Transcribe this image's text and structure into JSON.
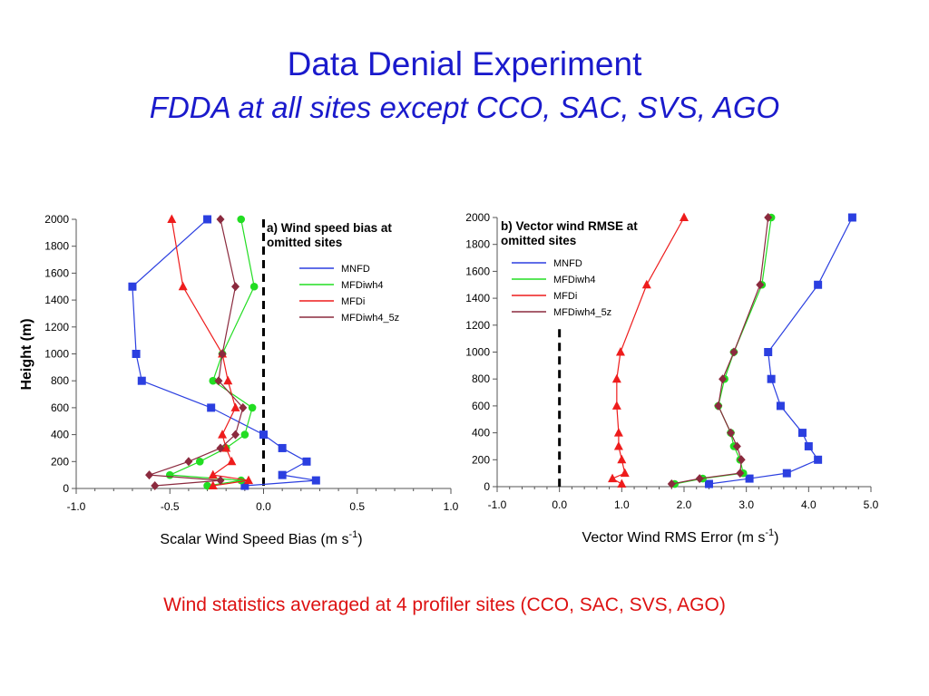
{
  "title": "Data Denial Experiment",
  "subtitle": "FDDA at all sites except CCO, SAC, SVS, AGO",
  "caption": "Wind statistics averaged at 4 profiler sites (CCO, SAC, SVS, AGO)",
  "colors": {
    "MNFD": "#2b3fe0",
    "MFDiwh4": "#22dd22",
    "MFDi": "#ee1c1c",
    "MFDiwh4_5z": "#8b2a3e"
  },
  "chart_data": [
    {
      "type": "line",
      "annotation": [
        "a) Wind speed bias at",
        "omitted sites"
      ],
      "xlabel": "Scalar Wind Speed Bias (m s",
      "xlabel_sup": "-1",
      "ylabel": "Height (m)",
      "xlim": [
        -1.0,
        1.0
      ],
      "ylim": [
        0,
        2000
      ],
      "xticks": [
        -1.0,
        -0.5,
        0.0,
        0.5,
        1.0
      ],
      "xtick_labels": [
        "-1.0",
        "-0.5",
        "0.0",
        "0.5",
        "1.0"
      ],
      "yticks": [
        0,
        200,
        400,
        600,
        800,
        1000,
        1200,
        1400,
        1600,
        1800,
        2000
      ],
      "ytick_labels": [
        "0",
        "200",
        "400",
        "600",
        "800",
        "1000",
        "1200",
        "1400",
        "1600",
        "1800",
        "2000"
      ],
      "reference_line": {
        "x": 0.0,
        "style": "dashed"
      },
      "legend_position": "top-right",
      "series": [
        {
          "name": "MNFD",
          "color": "#2b3fe0",
          "marker": "square",
          "x": [
            -0.1,
            0.28,
            0.1,
            0.23,
            0.1,
            0.0,
            -0.28,
            -0.65,
            -0.68,
            -0.7,
            -0.3
          ],
          "y": [
            20,
            60,
            100,
            200,
            300,
            400,
            600,
            800,
            1000,
            1500,
            2000
          ]
        },
        {
          "name": "MFDiwh4",
          "color": "#22dd22",
          "marker": "circle",
          "x": [
            -0.3,
            -0.12,
            -0.5,
            -0.34,
            -0.2,
            -0.1,
            -0.06,
            -0.27,
            -0.22,
            -0.05,
            -0.12
          ],
          "y": [
            20,
            60,
            100,
            200,
            300,
            400,
            600,
            800,
            1000,
            1500,
            2000
          ]
        },
        {
          "name": "MFDi",
          "color": "#ee1c1c",
          "marker": "triangle",
          "x": [
            -0.27,
            -0.08,
            -0.27,
            -0.17,
            -0.2,
            -0.22,
            -0.15,
            -0.19,
            -0.22,
            -0.43,
            -0.49
          ],
          "y": [
            20,
            60,
            100,
            200,
            300,
            400,
            600,
            800,
            1000,
            1500,
            2000
          ]
        },
        {
          "name": "MFDiwh4_5z",
          "color": "#8b2a3e",
          "marker": "diamond",
          "x": [
            -0.58,
            -0.23,
            -0.61,
            -0.4,
            -0.23,
            -0.15,
            -0.11,
            -0.24,
            -0.22,
            -0.15,
            -0.23
          ],
          "y": [
            20,
            60,
            100,
            200,
            300,
            400,
            600,
            800,
            1000,
            1500,
            2000
          ]
        }
      ]
    },
    {
      "type": "line",
      "annotation": [
        "b) Vector wind RMSE at",
        "omitted sites"
      ],
      "xlabel": "Vector Wind RMS Error (m s",
      "xlabel_sup": "-1",
      "ylabel": "",
      "xlim": [
        -1.0,
        5.0
      ],
      "ylim": [
        0,
        2000
      ],
      "xticks": [
        -1.0,
        0.0,
        1.0,
        2.0,
        3.0,
        4.0,
        5.0
      ],
      "xtick_labels": [
        "-1.0",
        "0.0",
        "1.0",
        "2.0",
        "3.0",
        "4.0",
        "5.0"
      ],
      "yticks": [
        0,
        200,
        400,
        600,
        800,
        1000,
        1200,
        1400,
        1600,
        1800,
        2000
      ],
      "ytick_labels": [
        "0",
        "200",
        "400",
        "600",
        "800",
        "1000",
        "1200",
        "1400",
        "1600",
        "1800",
        "2000"
      ],
      "reference_line": {
        "x": 0.0,
        "style": "dashed",
        "y_max": 1170
      },
      "legend_position": "top-left",
      "series": [
        {
          "name": "MNFD",
          "color": "#2b3fe0",
          "marker": "square",
          "x": [
            2.4,
            3.05,
            3.65,
            4.15,
            4.0,
            3.9,
            3.55,
            3.4,
            3.35,
            4.15,
            4.7
          ],
          "y": [
            20,
            60,
            100,
            200,
            300,
            400,
            600,
            800,
            1000,
            1500,
            2000
          ]
        },
        {
          "name": "MFDiwh4",
          "color": "#22dd22",
          "marker": "circle",
          "x": [
            1.85,
            2.3,
            2.95,
            2.9,
            2.8,
            2.75,
            2.55,
            2.65,
            2.8,
            3.25,
            3.4
          ],
          "y": [
            20,
            60,
            100,
            200,
            300,
            400,
            600,
            800,
            1000,
            1500,
            2000
          ]
        },
        {
          "name": "MFDi",
          "color": "#ee1c1c",
          "marker": "triangle",
          "x": [
            1.0,
            0.85,
            1.05,
            1.0,
            0.95,
            0.95,
            0.92,
            0.92,
            0.98,
            1.4,
            2.0
          ],
          "y": [
            20,
            60,
            100,
            200,
            300,
            400,
            600,
            800,
            1000,
            1500,
            2000
          ]
        },
        {
          "name": "MFDiwh4_5z",
          "color": "#8b2a3e",
          "marker": "diamond",
          "x": [
            1.8,
            2.25,
            2.9,
            2.92,
            2.85,
            2.75,
            2.55,
            2.62,
            2.8,
            3.22,
            3.35
          ],
          "y": [
            20,
            60,
            100,
            200,
            300,
            400,
            600,
            800,
            1000,
            1500,
            2000
          ]
        }
      ]
    }
  ]
}
